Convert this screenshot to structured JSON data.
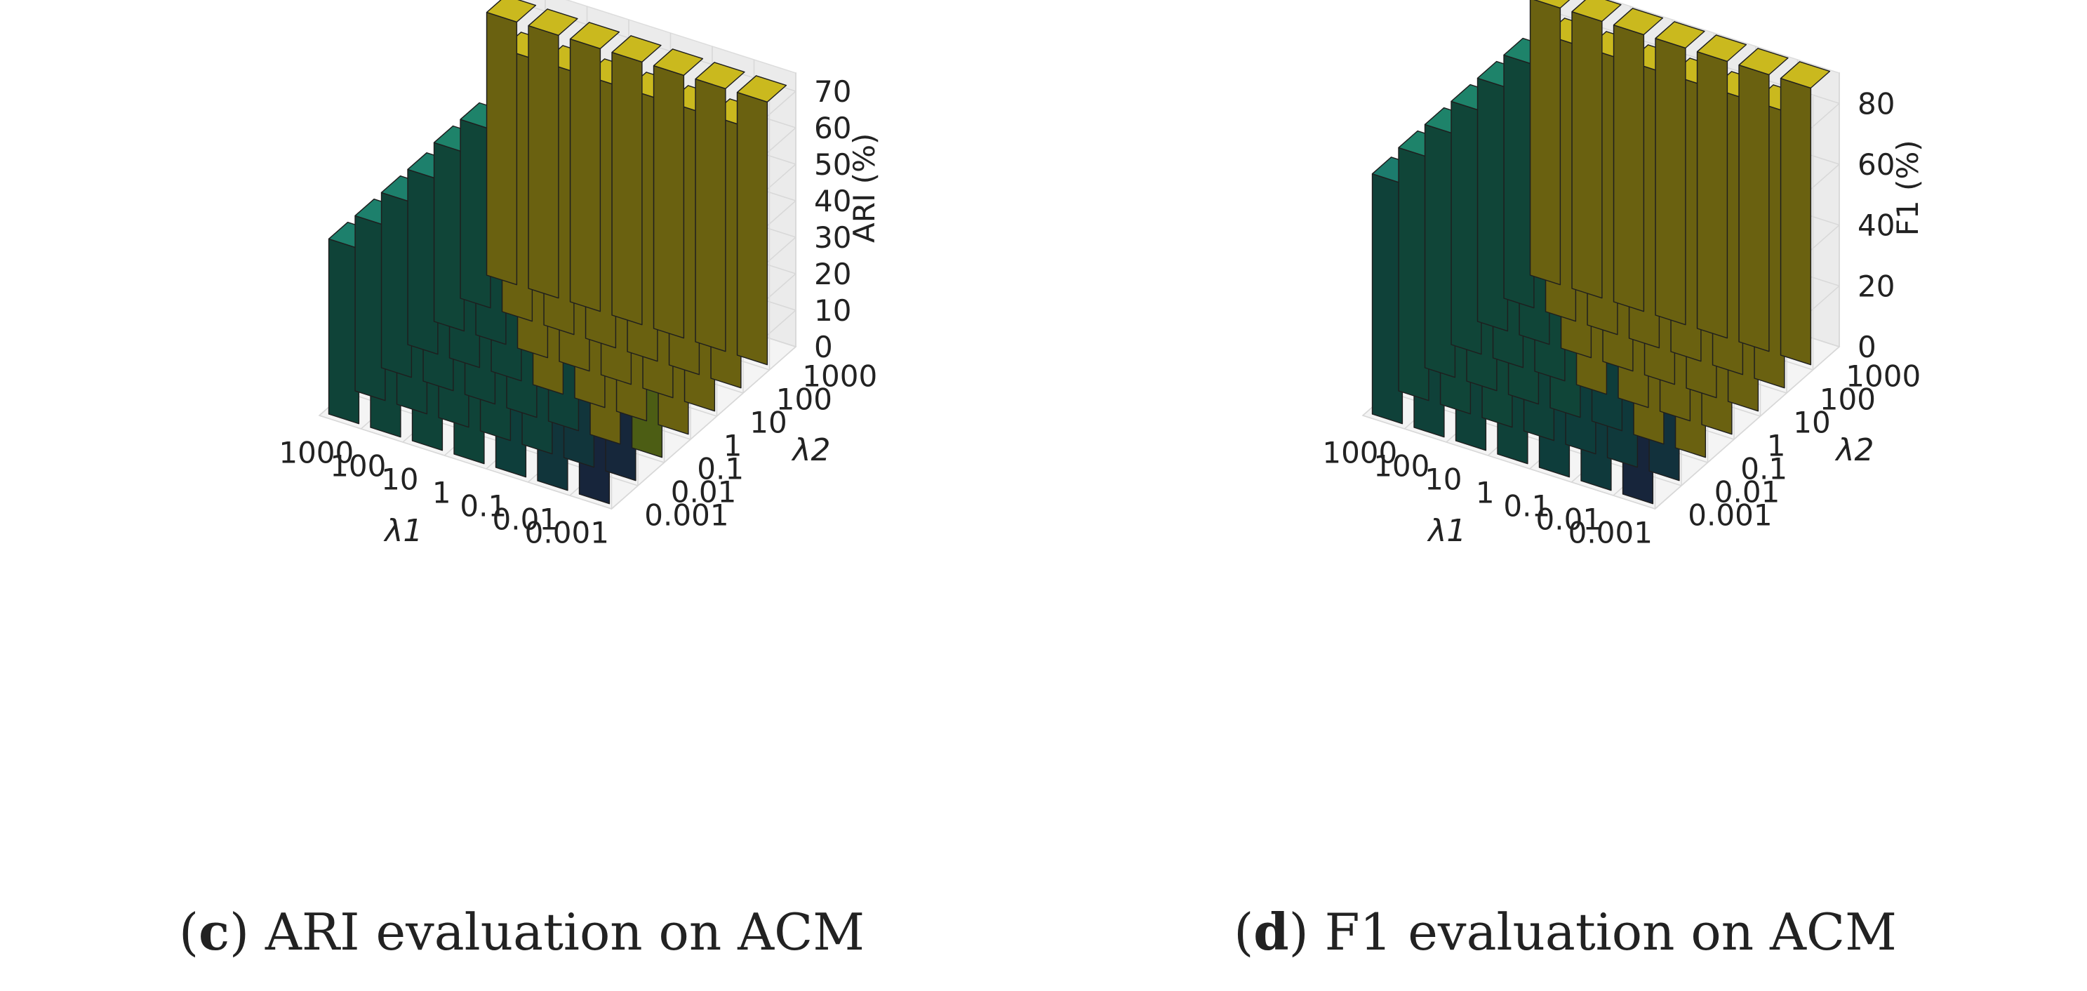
{
  "chart_data": [
    {
      "type": "bar3d",
      "panel_label": "c",
      "caption": "ARI evaluation on ACM",
      "x_label": "λ1",
      "y_label": "λ2",
      "z_label": "ARI (%)",
      "x_categories": [
        "1000",
        "100",
        "10",
        "1",
        "0.1",
        "0.01",
        "0.001"
      ],
      "y_categories": [
        "0.001",
        "0.01",
        "0.1",
        "1",
        "10",
        "100",
        "1000"
      ],
      "z_ticks": [
        0,
        10,
        20,
        30,
        40,
        50,
        60,
        70
      ],
      "z_range": [
        0,
        75
      ],
      "colormap": "viridis",
      "values": [
        [
          48,
          48,
          48,
          48,
          49,
          49,
          72
        ],
        [
          48,
          48,
          48,
          48,
          48,
          72,
          72
        ],
        [
          48,
          48,
          48,
          48,
          72,
          72,
          72
        ],
        [
          48,
          48,
          48,
          72,
          72,
          72,
          72
        ],
        [
          45,
          47,
          47,
          72,
          72,
          72,
          72
        ],
        [
          40,
          40,
          72,
          72,
          72,
          72,
          72
        ],
        [
          32,
          33,
          66,
          72,
          72,
          72,
          72
        ]
      ]
    },
    {
      "type": "bar3d",
      "panel_label": "d",
      "caption": "F1 evaluation on ACM",
      "x_label": "λ1",
      "y_label": "λ2",
      "z_label": "F1 (%)",
      "x_categories": [
        "1000",
        "100",
        "10",
        "1",
        "0.1",
        "0.01",
        "0.001"
      ],
      "y_categories": [
        "0.001",
        "0.01",
        "0.1",
        "1",
        "10",
        "100",
        "1000"
      ],
      "z_ticks": [
        0,
        20,
        40,
        60,
        80
      ],
      "z_range": [
        0,
        90
      ],
      "colormap": "viridis",
      "values": [
        [
          79,
          80,
          80,
          80,
          80,
          80,
          91
        ],
        [
          79,
          80,
          80,
          80,
          80,
          91,
          91
        ],
        [
          79,
          80,
          80,
          80,
          91,
          91,
          91
        ],
        [
          79,
          79,
          80,
          91,
          91,
          91,
          91
        ],
        [
          78,
          78,
          78,
          91,
          91,
          91,
          91
        ],
        [
          77,
          77,
          91,
          91,
          91,
          91,
          91
        ],
        [
          72,
          75,
          91,
          91,
          91,
          91,
          91
        ]
      ]
    }
  ]
}
